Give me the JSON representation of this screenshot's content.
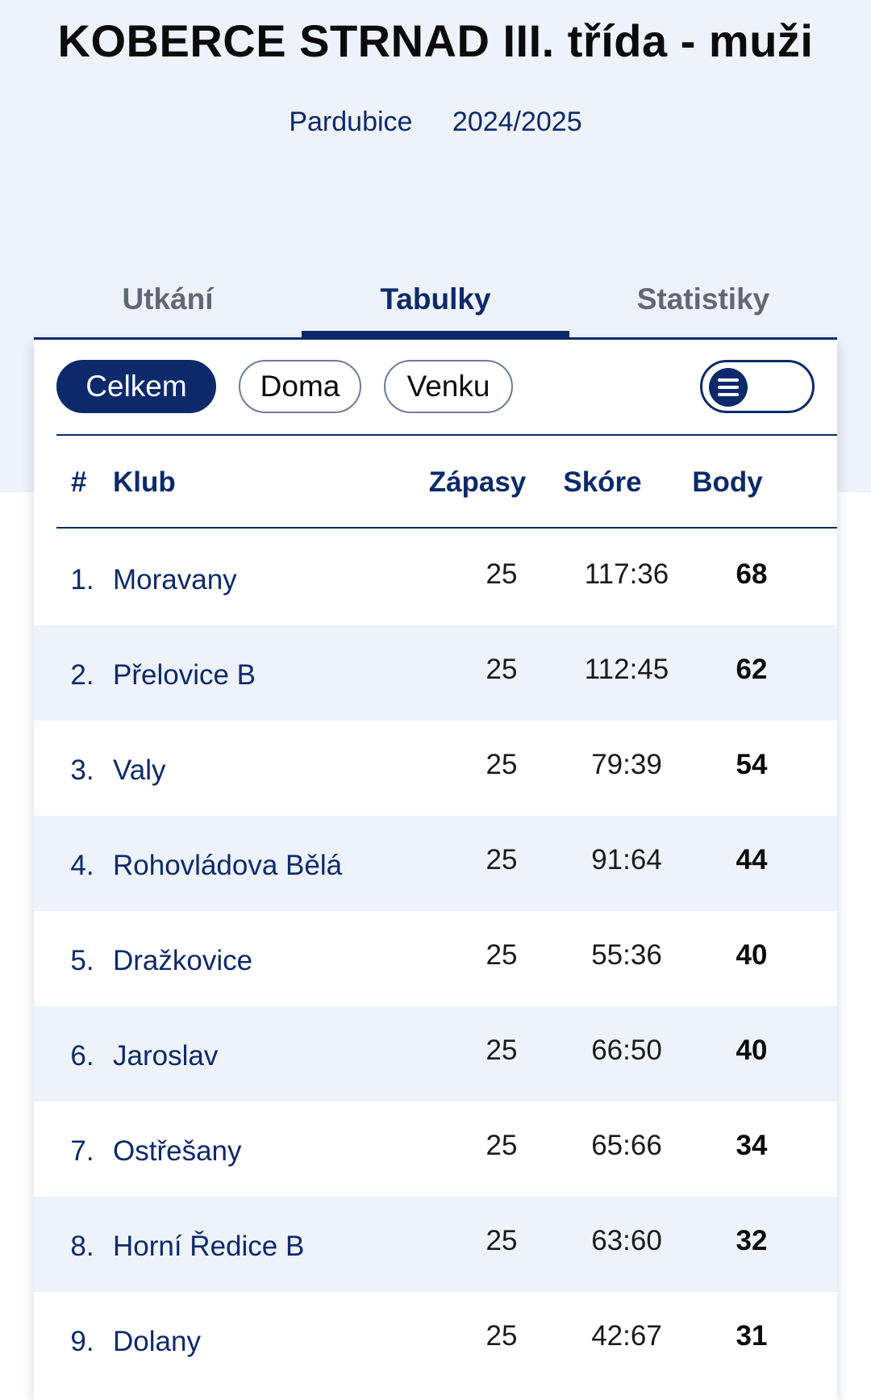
{
  "header": {
    "title": "KOBERCE STRNAD III. třída - muži",
    "region": "Pardubice",
    "season": "2024/2025"
  },
  "tabs": [
    {
      "label": "Utkání",
      "active": false
    },
    {
      "label": "Tabulky",
      "active": true
    },
    {
      "label": "Statistiky",
      "active": false
    }
  ],
  "filters": {
    "overall": "Celkem",
    "home": "Doma",
    "away": "Venku",
    "selected": "Celkem",
    "view_toggle_icon": "list-icon"
  },
  "table": {
    "columns": {
      "rank": "#",
      "club": "Klub",
      "matches": "Zápasy",
      "score": "Skóre",
      "points": "Body"
    },
    "rows": [
      {
        "rank": "1.",
        "club": "Moravany",
        "matches": "25",
        "score": "117:36",
        "points": "68"
      },
      {
        "rank": "2.",
        "club": "Přelovice B",
        "matches": "25",
        "score": "112:45",
        "points": "62"
      },
      {
        "rank": "3.",
        "club": "Valy",
        "matches": "25",
        "score": "79:39",
        "points": "54"
      },
      {
        "rank": "4.",
        "club": "Rohovládova Bělá",
        "matches": "25",
        "score": "91:64",
        "points": "44"
      },
      {
        "rank": "5.",
        "club": "Dražkovice",
        "matches": "25",
        "score": "55:36",
        "points": "40"
      },
      {
        "rank": "6.",
        "club": "Jaroslav",
        "matches": "25",
        "score": "66:50",
        "points": "40"
      },
      {
        "rank": "7.",
        "club": "Ostřešany",
        "matches": "25",
        "score": "65:66",
        "points": "34"
      },
      {
        "rank": "8.",
        "club": "Horní Ředice B",
        "matches": "25",
        "score": "63:60",
        "points": "32"
      },
      {
        "rank": "9.",
        "club": "Dolany",
        "matches": "25",
        "score": "42:67",
        "points": "31"
      }
    ]
  },
  "colors": {
    "primary": "#0c2a6b",
    "header_bg": "#eef2fb",
    "alt_row_bg": "#eef2fb",
    "inactive_tab": "#616875"
  }
}
